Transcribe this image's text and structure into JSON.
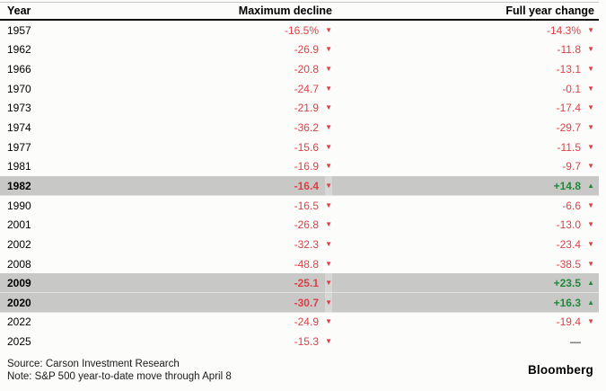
{
  "colors": {
    "red": "#dc3f46",
    "green": "#1e8a3a",
    "highlight": "#c8c8c6"
  },
  "icons": {
    "down_arrow": "▼",
    "up_arrow": "▲"
  },
  "header": {
    "year": "Year",
    "decline": "Maximum decline",
    "change": "Full year change"
  },
  "footer": {
    "source": "Source: Carson Investment Research",
    "note": "Note: S&P 500 year-to-date move through April 8",
    "brand": "Bloomberg"
  },
  "chart_data": {
    "type": "table",
    "title": "",
    "columns": [
      "Year",
      "Maximum decline",
      "Full year change"
    ],
    "rows": [
      {
        "year": "1957",
        "decline": "-16.5%",
        "decline_dir": "down",
        "change": "-14.3%",
        "change_dir": "down",
        "highlight": false
      },
      {
        "year": "1962",
        "decline": "-26.9",
        "decline_dir": "down",
        "change": "-11.8",
        "change_dir": "down",
        "highlight": false
      },
      {
        "year": "1966",
        "decline": "-20.8",
        "decline_dir": "down",
        "change": "-13.1",
        "change_dir": "down",
        "highlight": false
      },
      {
        "year": "1970",
        "decline": "-24.7",
        "decline_dir": "down",
        "change": "-0.1",
        "change_dir": "down",
        "highlight": false
      },
      {
        "year": "1973",
        "decline": "-21.9",
        "decline_dir": "down",
        "change": "-17.4",
        "change_dir": "down",
        "highlight": false
      },
      {
        "year": "1974",
        "decline": "-36.2",
        "decline_dir": "down",
        "change": "-29.7",
        "change_dir": "down",
        "highlight": false
      },
      {
        "year": "1977",
        "decline": "-15.6",
        "decline_dir": "down",
        "change": "-11.5",
        "change_dir": "down",
        "highlight": false
      },
      {
        "year": "1981",
        "decline": "-16.9",
        "decline_dir": "down",
        "change": "-9.7",
        "change_dir": "down",
        "highlight": false
      },
      {
        "year": "1982",
        "decline": "-16.4",
        "decline_dir": "down",
        "change": "+14.8",
        "change_dir": "up",
        "highlight": true
      },
      {
        "year": "1990",
        "decline": "-16.5",
        "decline_dir": "down",
        "change": "-6.6",
        "change_dir": "down",
        "highlight": false
      },
      {
        "year": "2001",
        "decline": "-26.8",
        "decline_dir": "down",
        "change": "-13.0",
        "change_dir": "down",
        "highlight": false
      },
      {
        "year": "2002",
        "decline": "-32.3",
        "decline_dir": "down",
        "change": "-23.4",
        "change_dir": "down",
        "highlight": false
      },
      {
        "year": "2008",
        "decline": "-48.8",
        "decline_dir": "down",
        "change": "-38.5",
        "change_dir": "down",
        "highlight": false
      },
      {
        "year": "2009",
        "decline": "-25.1",
        "decline_dir": "down",
        "change": "+23.5",
        "change_dir": "up",
        "highlight": true
      },
      {
        "year": "2020",
        "decline": "-30.7",
        "decline_dir": "down",
        "change": "+16.3",
        "change_dir": "up",
        "highlight": true
      },
      {
        "year": "2022",
        "decline": "-24.9",
        "decline_dir": "down",
        "change": "-19.4",
        "change_dir": "down",
        "highlight": false
      },
      {
        "year": "2025",
        "decline": "-15.3",
        "decline_dir": "down",
        "change": "—",
        "change_dir": "none",
        "highlight": false
      }
    ]
  }
}
